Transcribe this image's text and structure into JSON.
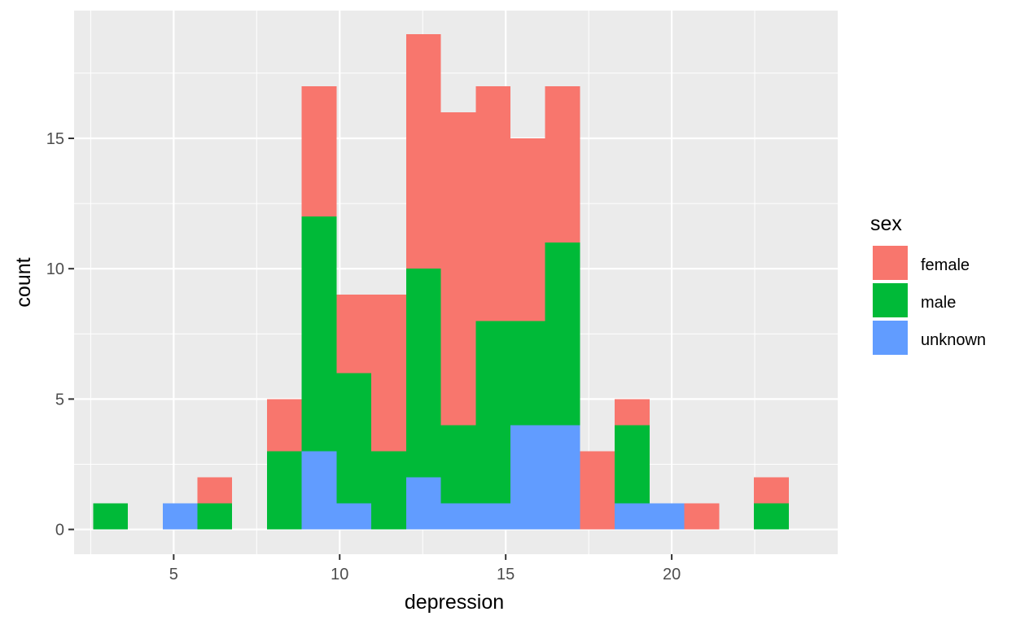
{
  "chart_data": {
    "type": "histogram",
    "stacked": true,
    "xlabel": "depression",
    "ylabel": "count",
    "xlim": [
      2,
      25
    ],
    "ylim": [
      -0.95,
      19.9
    ],
    "x_breaks": [
      5,
      10,
      15,
      20
    ],
    "x_break_labels": [
      "5",
      "10",
      "15",
      "20"
    ],
    "y_breaks": [
      0,
      5,
      10,
      15
    ],
    "y_break_labels": [
      "0",
      "5",
      "10",
      "15"
    ],
    "bins": [
      {
        "x0": 2.571,
        "x1": 3.619
      },
      {
        "x0": 3.619,
        "x1": 4.667
      },
      {
        "x0": 4.667,
        "x1": 5.714
      },
      {
        "x0": 5.714,
        "x1": 6.762
      },
      {
        "x0": 6.762,
        "x1": 7.81
      },
      {
        "x0": 7.81,
        "x1": 8.857
      },
      {
        "x0": 8.857,
        "x1": 9.905
      },
      {
        "x0": 9.905,
        "x1": 10.952
      },
      {
        "x0": 10.952,
        "x1": 12.0
      },
      {
        "x0": 12.0,
        "x1": 13.048
      },
      {
        "x0": 13.048,
        "x1": 14.095
      },
      {
        "x0": 14.095,
        "x1": 15.143
      },
      {
        "x0": 15.143,
        "x1": 16.19
      },
      {
        "x0": 16.19,
        "x1": 17.238
      },
      {
        "x0": 17.238,
        "x1": 18.286
      },
      {
        "x0": 18.286,
        "x1": 19.333
      },
      {
        "x0": 19.333,
        "x1": 20.381
      },
      {
        "x0": 20.381,
        "x1": 21.429
      },
      {
        "x0": 21.429,
        "x1": 22.476
      },
      {
        "x0": 22.476,
        "x1": 23.524
      }
    ],
    "series": [
      {
        "name": "unknown",
        "color": "#619CFF",
        "values": [
          0,
          0,
          1,
          0,
          0,
          0,
          3,
          1,
          0,
          2,
          1,
          1,
          4,
          4,
          0,
          1,
          1,
          0,
          0,
          0
        ]
      },
      {
        "name": "male",
        "color": "#00BA38",
        "values": [
          1,
          0,
          0,
          1,
          0,
          3,
          9,
          5,
          3,
          8,
          3,
          7,
          4,
          7,
          0,
          3,
          0,
          0,
          0,
          1
        ]
      },
      {
        "name": "female",
        "color": "#F8766D",
        "values": [
          0,
          0,
          0,
          1,
          0,
          2,
          5,
          3,
          6,
          9,
          12,
          9,
          7,
          6,
          3,
          1,
          0,
          1,
          0,
          1
        ]
      }
    ],
    "legend": {
      "title": "sex",
      "entries": [
        {
          "label": "female",
          "color": "#F8766D"
        },
        {
          "label": "male",
          "color": "#00BA38"
        },
        {
          "label": "unknown",
          "color": "#619CFF"
        }
      ]
    }
  }
}
